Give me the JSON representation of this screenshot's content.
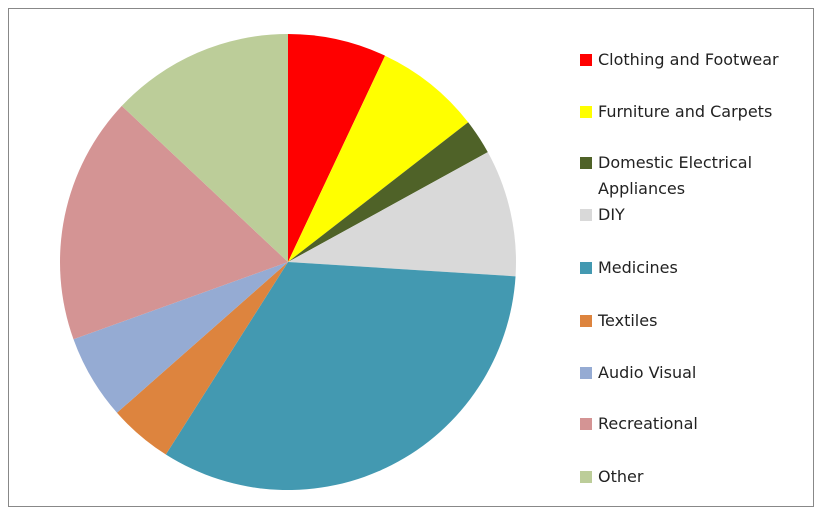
{
  "chart_data": {
    "type": "pie",
    "categories": [
      "Clothing and Footwear",
      "Furniture and Carpets",
      "Domestic Electrical Appliances",
      "DIY",
      "Medicines",
      "Textiles",
      "Audio Visual",
      "Recreational",
      "Other"
    ],
    "values": [
      7,
      7.5,
      2.5,
      9,
      33,
      4.5,
      6,
      17.5,
      13
    ],
    "colors": [
      "#ff0000",
      "#ffff00",
      "#4f6228",
      "#d9d9d9",
      "#4399b1",
      "#dd843e",
      "#95abd3",
      "#d49494",
      "#bccd99"
    ],
    "legend": "right"
  }
}
